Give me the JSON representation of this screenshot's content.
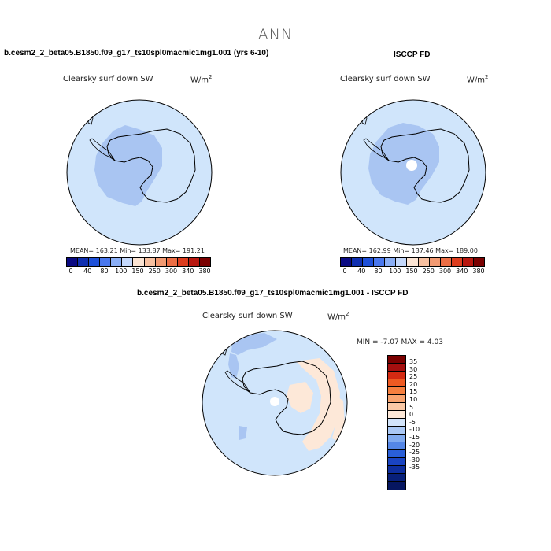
{
  "page_title": "ANN",
  "panels": [
    {
      "title": "b.cesm2_2_beta05.B1850.f09_g17_ts10spl0macmic1mg1.001 (yrs 6-10)",
      "variable": "Clearsky surf down SW",
      "units_base": "W/m",
      "units_exp": "2",
      "stats": "MEAN= 163.21   Min= 133.87   Max= 191.21"
    },
    {
      "title": "ISCCP FD",
      "variable": "Clearsky surf down SW",
      "units_base": "W/m",
      "units_exp": "2",
      "stats": "MEAN= 162.99   Min= 137.46   Max= 189.00"
    },
    {
      "title": "b.cesm2_2_beta05.B1850.f09_g17_ts10spl0macmic1mg1.001 - ISCCP FD",
      "variable": "Clearsky surf down SW",
      "units_base": "W/m",
      "units_exp": "2",
      "stats": "MIN =  -7.07  MAX =   4.03"
    }
  ],
  "colorbar_abs": {
    "colors": [
      "#0a0a82",
      "#0f2fb0",
      "#1e50d8",
      "#4a78ee",
      "#8aaef5",
      "#c4d8fb",
      "#fbe4d3",
      "#f7c0a0",
      "#f29a72",
      "#ec6e45",
      "#dd3d1e",
      "#b8170f",
      "#7a0000"
    ],
    "labels": [
      "0",
      "40",
      "80",
      "100",
      "150",
      "250",
      "300",
      "340",
      "380"
    ]
  },
  "colorbar_diff": {
    "colors": [
      "#7a0000",
      "#a50f0f",
      "#d42a12",
      "#ee5a22",
      "#f57f3f",
      "#f8a470",
      "#fbc9a6",
      "#fde8d8",
      "#d2e4fb",
      "#aac8f5",
      "#80aaef",
      "#5486e6",
      "#2a5fd8",
      "#1a44c2",
      "#0e2e9e",
      "#08207a",
      "#061660"
    ],
    "labels": [
      "35",
      "30",
      "25",
      "20",
      "15",
      "10",
      "5",
      "0",
      "-5",
      "-10",
      "-15",
      "-20",
      "-25",
      "-30",
      "-35"
    ]
  },
  "colors": {
    "ocean_light": "#d0e5fb",
    "land_blue": "#a9c5f2",
    "land_white": "#ffffff",
    "diff_pos": "#fde8d8",
    "diff_neg": "#a9c5f2"
  },
  "chart_data": [
    {
      "type": "heatmap",
      "title": "b.cesm2_2_beta05.B1850.f09_g17_ts10spl0macmic1mg1.001 (yrs 6-10)",
      "variable": "Clearsky surf down SW",
      "units": "W/m2",
      "projection": "south polar stereographic",
      "mean": 163.21,
      "min": 133.87,
      "max": 191.21,
      "levels": [
        0,
        40,
        80,
        100,
        150,
        250,
        300,
        340,
        380
      ]
    },
    {
      "type": "heatmap",
      "title": "ISCCP FD",
      "variable": "Clearsky surf down SW",
      "units": "W/m2",
      "projection": "south polar stereographic",
      "mean": 162.99,
      "min": 137.46,
      "max": 189.0,
      "levels": [
        0,
        40,
        80,
        100,
        150,
        250,
        300,
        340,
        380
      ]
    },
    {
      "type": "heatmap",
      "title": "b.cesm2_2_beta05.B1850.f09_g17_ts10spl0macmic1mg1.001 - ISCCP FD",
      "variable": "Clearsky surf down SW",
      "units": "W/m2",
      "projection": "south polar stereographic",
      "min": -7.07,
      "max": 4.03,
      "levels": [
        35,
        30,
        25,
        20,
        15,
        10,
        5,
        0,
        -5,
        -10,
        -15,
        -20,
        -25,
        -30,
        -35
      ]
    }
  ]
}
